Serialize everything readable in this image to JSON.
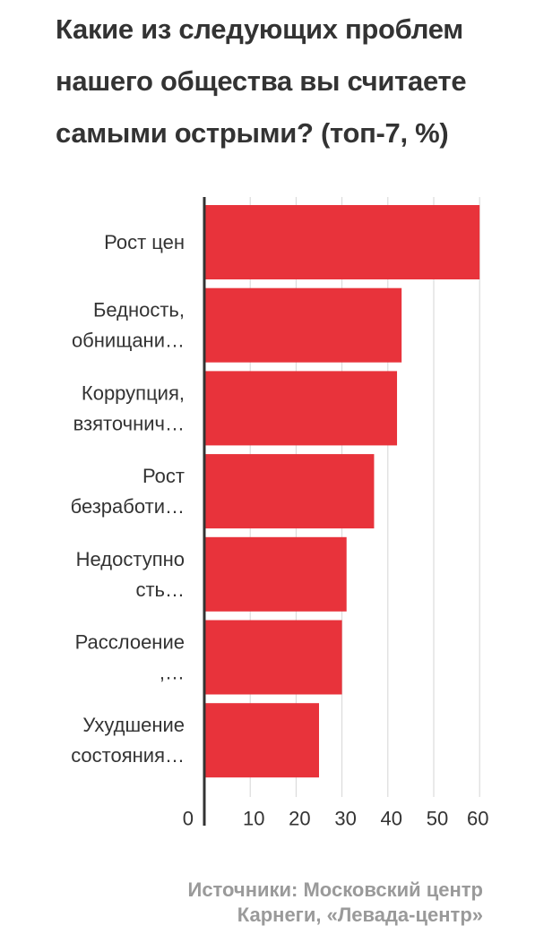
{
  "chart_data": {
    "type": "bar",
    "orientation": "horizontal",
    "title_lines": [
      "Какие из следующих проблем",
      "нашего общества вы считаете",
      "самыми острыми? (топ-7, %)"
    ],
    "categories": [
      [
        "Рост цен"
      ],
      [
        "Бедность,",
        "обнищани…"
      ],
      [
        "Коррупция,",
        "взяточнич…"
      ],
      [
        "Рост",
        "безработи…"
      ],
      [
        "Недоступно",
        "сть…"
      ],
      [
        "Расслоение",
        ",…"
      ],
      [
        "Ухудшение",
        "состояния…"
      ]
    ],
    "values": [
      60,
      43,
      42,
      37,
      31,
      30,
      25
    ],
    "xlim": [
      0,
      60
    ],
    "x_ticks": [
      "0",
      "10",
      "20",
      "30",
      "40",
      "50",
      "60"
    ],
    "grid": true,
    "bar_color": "#e8333b",
    "source_lines": [
      "Источники: Московский центр",
      "Карнеги, «Левада-центр»"
    ]
  }
}
